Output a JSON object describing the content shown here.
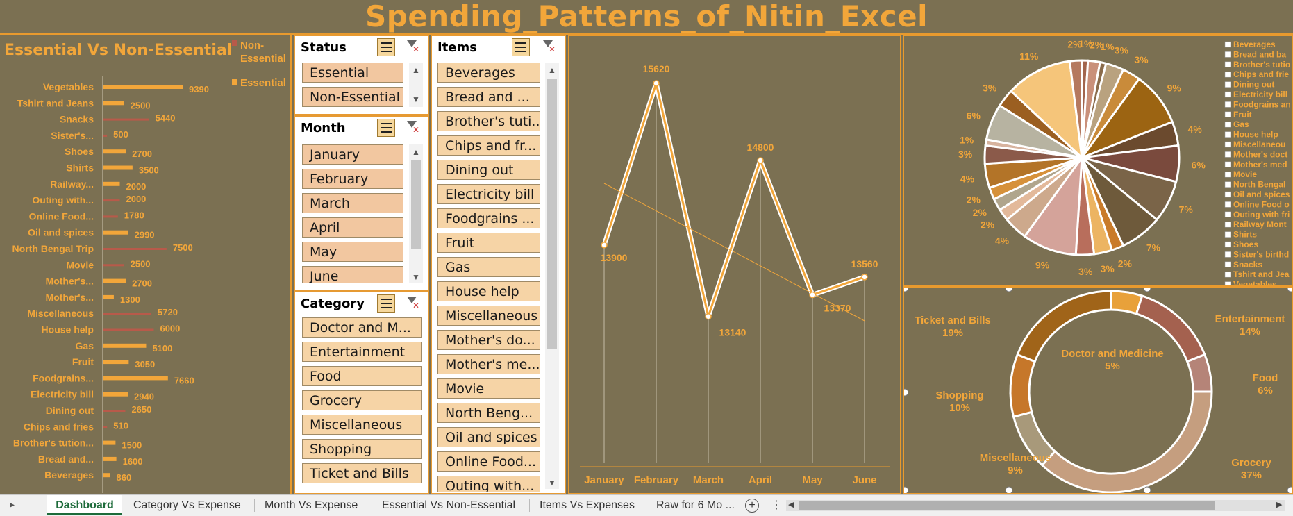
{
  "title": "Spending_Patterns_of_Nitin_Excel",
  "colors": {
    "accent": "#f2a63a",
    "background": "#7b7052",
    "bar": "#f2a63a",
    "nonessential": "#b85a4a"
  },
  "chart_data": [
    {
      "type": "bar",
      "title": "Essential Vs Non-Essential",
      "legend": [
        "Non-Essential",
        "Essential"
      ],
      "legend_position": "top-right",
      "categories": [
        "Vegetables",
        "Tshirt and Jeans",
        "Snacks",
        "Sister's...",
        "Shoes",
        "Shirts",
        "Railway...",
        "Outing with...",
        "Online Food...",
        "Oil and spices",
        "North Bengal Trip",
        "Movie",
        "Mother's...",
        "Mother's...",
        "Miscellaneous",
        "House help",
        "Gas",
        "Fruit",
        "Foodgrains...",
        "Electricity bill",
        "Dining out",
        "Chips and fries",
        "Brother's tution...",
        "Bread and...",
        "Beverages"
      ],
      "values": [
        9390,
        2500,
        5440,
        500,
        2700,
        3500,
        2000,
        2000,
        1780,
        2990,
        7500,
        2500,
        2700,
        1300,
        5720,
        6000,
        5100,
        3050,
        7660,
        2940,
        2650,
        510,
        1500,
        1600,
        860
      ],
      "status": [
        "Essential",
        "Essential",
        "Non-Essential",
        "Non-Essential",
        "Essential",
        "Essential",
        "Essential",
        "Non-Essential",
        "Non-Essential",
        "Essential",
        "Non-Essential",
        "Non-Essential",
        "Essential",
        "Essential",
        "Non-Essential",
        "Non-Essential",
        "Essential",
        "Essential",
        "Essential",
        "Essential",
        "Non-Essential",
        "Non-Essential",
        "Essential",
        "Essential",
        "Essential"
      ]
    },
    {
      "type": "line",
      "categories": [
        "January",
        "February",
        "March",
        "April",
        "May",
        "June"
      ],
      "values": [
        13900,
        15620,
        13140,
        14800,
        13370,
        13560
      ],
      "trendline": true
    },
    {
      "type": "pie",
      "labels": [
        "1%",
        "2%",
        "1%",
        "3%",
        "3%",
        "9%",
        "4%",
        "6%",
        "7%",
        "7%",
        "2%",
        "3%",
        "3%",
        "9%",
        "4%",
        "2%",
        "2%",
        "2%",
        "4%",
        "3%",
        "1%",
        "6%",
        "3%",
        "11%",
        "2%"
      ],
      "values": [
        1,
        2,
        1,
        3,
        3,
        9,
        4,
        6,
        7,
        7,
        2,
        3,
        3,
        9,
        4,
        2,
        2,
        2,
        4,
        3,
        1,
        6,
        3,
        11,
        2
      ],
      "legend": [
        "Beverages",
        "Bread and ba",
        "Brother's tutio",
        "Chips and frie",
        "Dining out",
        "Electricity bill",
        "Foodgrains an",
        "Fruit",
        "Gas",
        "House help",
        "Miscellaneou",
        "Mother's doct",
        "Mother's med",
        "Movie",
        "North Bengal",
        "Oil and spices",
        "Online Food o",
        "Outing with fri",
        "Railway Mont",
        "Shirts",
        "Shoes",
        "Sister's birthd",
        "Snacks",
        "Tshirt and Jea",
        "Vegetables"
      ],
      "legend_position": "right"
    },
    {
      "type": "pie",
      "categories": [
        "Doctor and Medicine",
        "Entertainment",
        "Food",
        "Grocery",
        "Miscellaneous",
        "Shopping",
        "Ticket and Bills"
      ],
      "values": [
        5,
        14,
        6,
        37,
        9,
        10,
        19
      ],
      "labels": [
        "5%",
        "14%",
        "6%",
        "37%",
        "9%",
        "10%",
        "19%"
      ]
    }
  ],
  "slicers": {
    "status": {
      "title": "Status",
      "items": [
        "Essential",
        "Non-Essential"
      ]
    },
    "month": {
      "title": "Month",
      "items": [
        "January",
        "February",
        "March",
        "April",
        "May",
        "June"
      ]
    },
    "category": {
      "title": "Category",
      "items": [
        "Doctor and M...",
        "Entertainment",
        "Food",
        "Grocery",
        "Miscellaneous",
        "Shopping",
        "Ticket and Bills"
      ]
    },
    "items": {
      "title": "Items",
      "items": [
        "Beverages",
        "Bread and ...",
        "Brother's tuti...",
        "Chips and fr...",
        "Dining out",
        "Electricity bill",
        "Foodgrains ...",
        "Fruit",
        "Gas",
        "House help",
        "Miscellaneous",
        "Mother's do...",
        "Mother's me...",
        "Movie",
        "North Beng...",
        "Oil and spices",
        "Online Food...",
        "Outing with..."
      ]
    }
  },
  "tabs": [
    "Dashboard",
    "Category Vs Expense",
    "Month Vs Expense",
    "Essential Vs Non-Essential",
    "Items Vs Expenses",
    "Raw for 6 Mo ..."
  ]
}
